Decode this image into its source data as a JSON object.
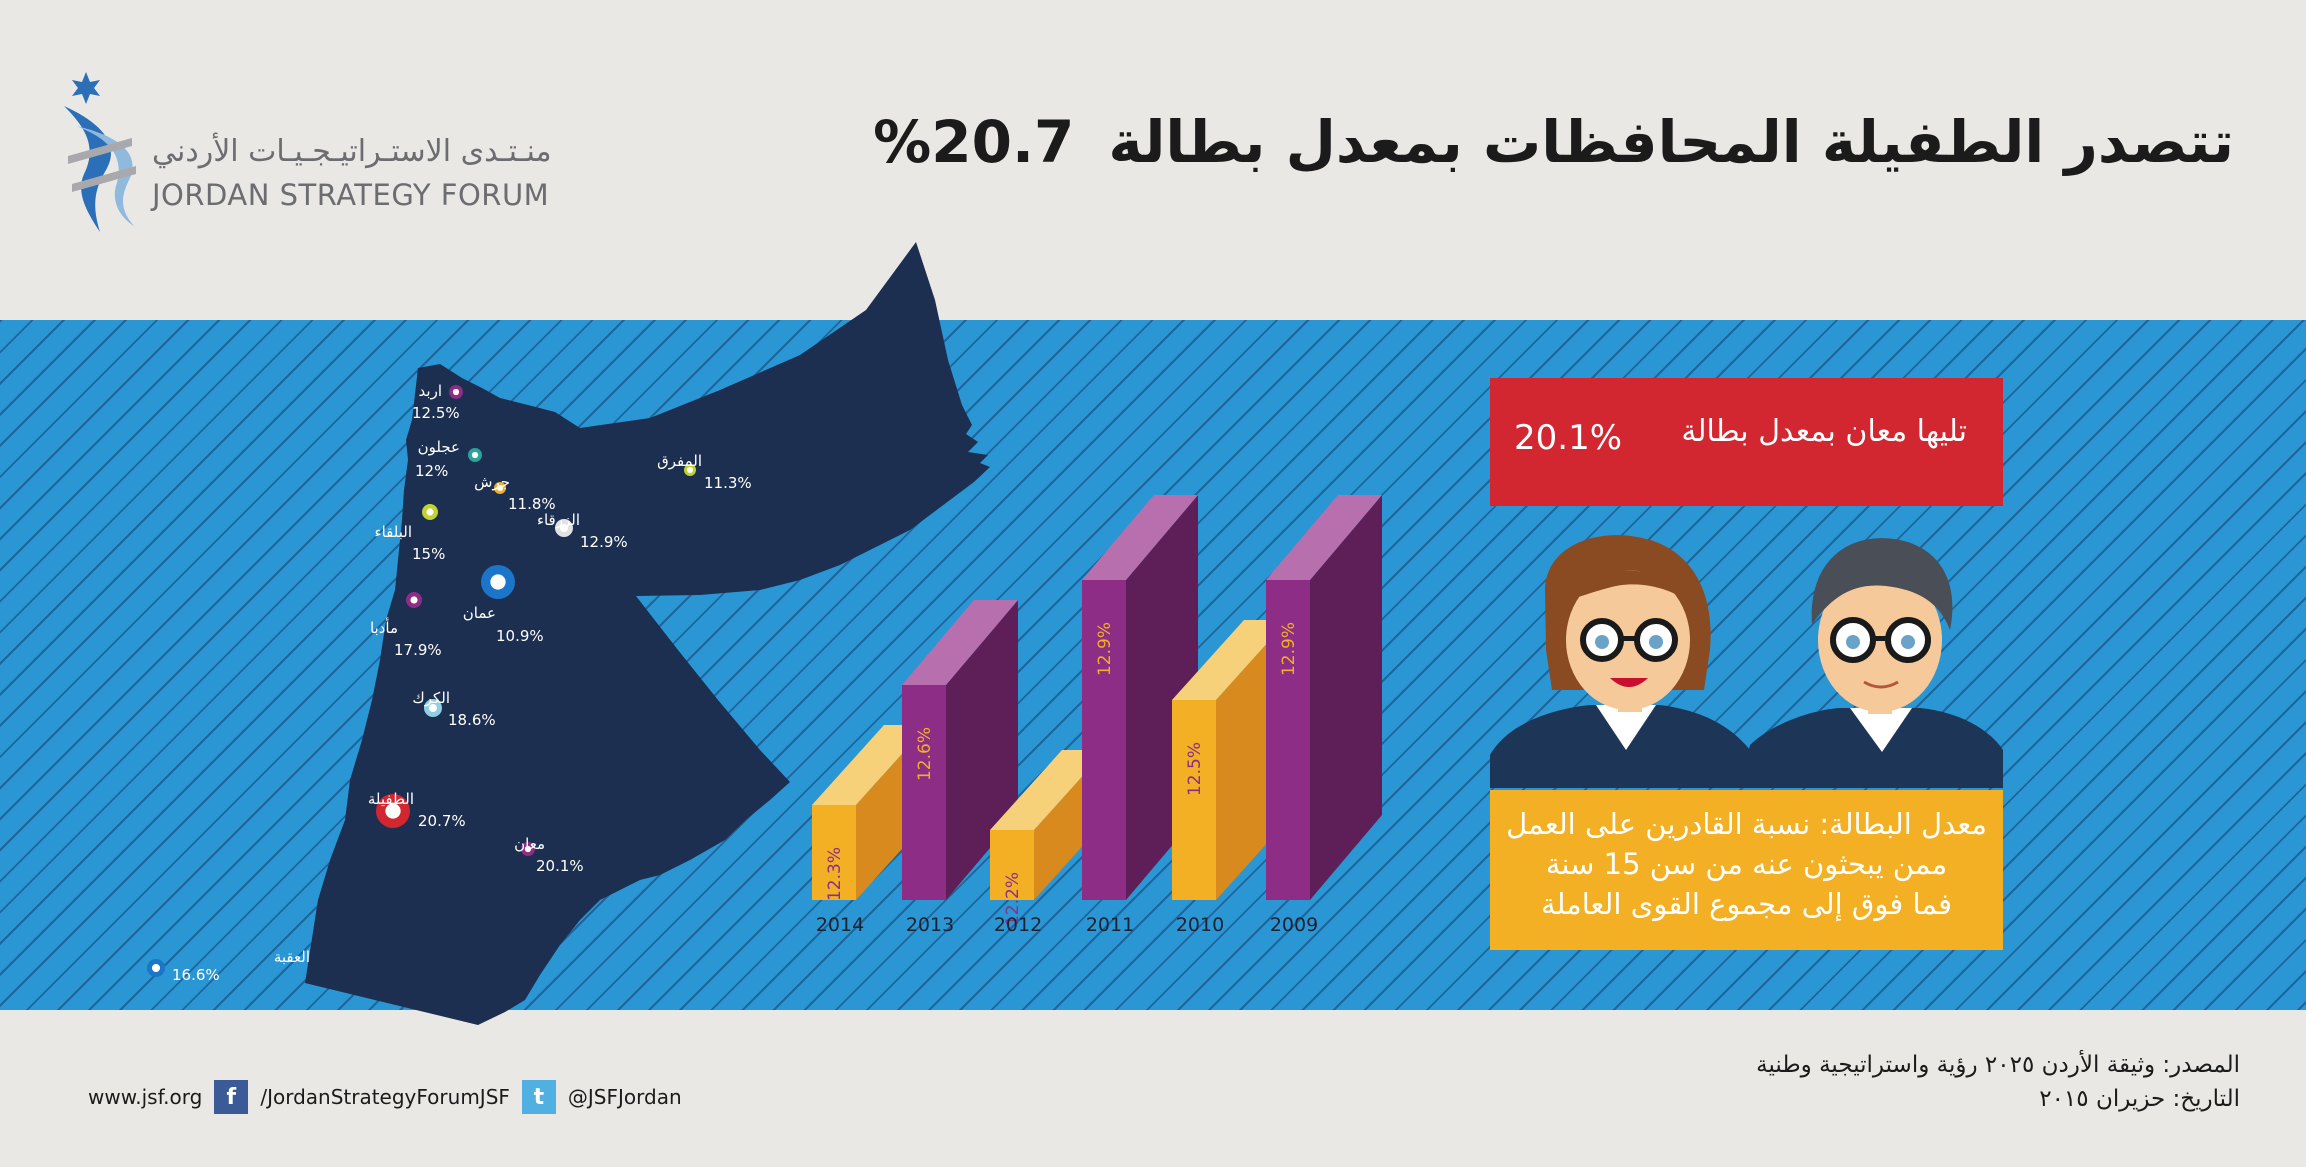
{
  "header": {
    "title_text": "تتصدر الطفيلة المحافظات بمعدل بطالة",
    "title_pct": "20.7%",
    "logo_ar": "منـتـدى الاستـراتيـجـيـات الأردني",
    "logo_en": "JORDAN STRATEGY FORUM"
  },
  "cities": [
    {
      "name": "اربد",
      "value": "12.5%"
    },
    {
      "name": "عجلون",
      "value": "12%"
    },
    {
      "name": "جرش",
      "value": "11.8%"
    },
    {
      "name": "المفرق",
      "value": "11.3%"
    },
    {
      "name": "الزرقاء",
      "value": "12.9%"
    },
    {
      "name": "البلقاء",
      "value": "15%"
    },
    {
      "name": "عمان",
      "value": "10.9%"
    },
    {
      "name": "مأدبا",
      "value": "17.9%"
    },
    {
      "name": "الكرك",
      "value": "18.6%"
    },
    {
      "name": "الطفيلة",
      "value": "20.7%"
    },
    {
      "name": "معان",
      "value": "20.1%"
    },
    {
      "name": "العقبة",
      "value": "16.6%"
    }
  ],
  "chart_data": {
    "type": "bar",
    "categories": [
      "2014",
      "2013",
      "2012",
      "2011",
      "2010",
      "2009"
    ],
    "values": [
      12.3,
      12.6,
      12.2,
      12.9,
      12.5,
      12.9
    ],
    "labels": [
      "12.3%",
      "12.6%",
      "12.2%",
      "12.9%",
      "12.5%",
      "12.9%"
    ],
    "colors": {
      "yellow": "#f3b024",
      "purple": "#8e2d86"
    }
  },
  "red_box": {
    "text": "تليها معان بمعدل بطالة",
    "pct": "20.1%"
  },
  "definition": {
    "line1": "معدل البطالة: نسبة القادرين على العمل",
    "line2": "ممن يبحثون عنه من سن 15 سنة",
    "line3": "فما فوق إلى مجموع القوى العاملة"
  },
  "footer": {
    "website": "www.jsf.org",
    "facebook": "/JordanStrategyForumJSF",
    "twitter": "@JSFJordan",
    "source": "المصدر: وثيقة الأردن ٢٠٢٥ رؤية واستراتيجية وطنية",
    "date": "التاريخ: حزيران ٢٠١٥"
  },
  "colors": {
    "band": "#2a97d4",
    "map": "#1c2f50",
    "red": "#d22630",
    "yellow": "#f3b024"
  }
}
